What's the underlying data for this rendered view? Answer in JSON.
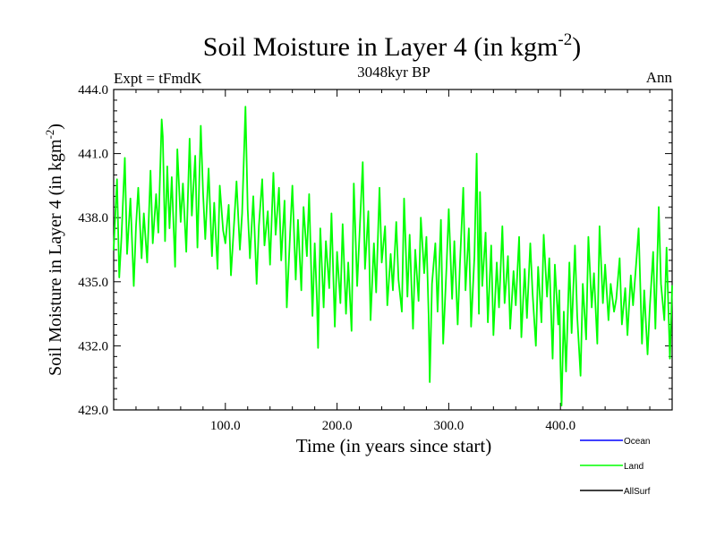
{
  "chart_data": {
    "type": "line",
    "title": "Soil Moisture in Layer 4 (in kgm",
    "title_exponent": "-2",
    "title_suffix": ")",
    "subtitle": "3048kyr BP",
    "left_label": "Expt = tFmdK",
    "right_label": "Ann",
    "xlabel": "Time (in years since start)",
    "ylabel": "Soil Moisture in Layer 4 (in kgm",
    "ylabel_exponent": "-2",
    "ylabel_suffix": ")",
    "xlim": [
      0,
      500
    ],
    "ylim": [
      429.0,
      444.0
    ],
    "x_ticks": [
      100,
      200,
      300,
      400
    ],
    "x_tick_labels": [
      "100.0",
      "200.0",
      "300.0",
      "400.0"
    ],
    "y_ticks": [
      429,
      432,
      435,
      438,
      441,
      444
    ],
    "y_tick_labels": [
      "429.0",
      "432.0",
      "435.0",
      "438.0",
      "441.0",
      "444.0"
    ],
    "series": [
      {
        "name": "Land",
        "color": "#00ff00",
        "x": [
          0,
          3,
          5,
          7,
          10,
          12,
          15,
          18,
          20,
          22,
          25,
          27,
          30,
          33,
          35,
          38,
          40,
          43,
          44,
          46,
          48,
          50,
          52,
          55,
          57,
          60,
          62,
          65,
          68,
          70,
          73,
          75,
          78,
          80,
          82,
          85,
          88,
          90,
          93,
          95,
          98,
          100,
          103,
          105,
          108,
          110,
          113,
          115,
          117,
          118,
          120,
          122,
          125,
          128,
          130,
          133,
          135,
          138,
          140,
          143,
          145,
          148,
          150,
          153,
          155,
          158,
          160,
          163,
          165,
          168,
          170,
          173,
          175,
          178,
          180,
          182,
          183,
          185,
          188,
          190,
          193,
          195,
          198,
          200,
          203,
          205,
          208,
          210,
          213,
          215,
          218,
          220,
          223,
          225,
          228,
          230,
          233,
          235,
          238,
          240,
          243,
          245,
          248,
          250,
          253,
          255,
          258,
          260,
          263,
          265,
          268,
          270,
          273,
          275,
          278,
          280,
          282,
          283,
          285,
          288,
          290,
          293,
          295,
          298,
          300,
          303,
          305,
          308,
          310,
          313,
          315,
          318,
          320,
          323,
          325,
          327,
          328,
          330,
          333,
          335,
          338,
          340,
          343,
          345,
          348,
          350,
          353,
          355,
          358,
          360,
          363,
          365,
          368,
          370,
          373,
          375,
          378,
          380,
          383,
          385,
          388,
          390,
          393,
          395,
          398,
          399,
          400,
          401,
          403,
          405,
          408,
          410,
          413,
          415,
          418,
          420,
          423,
          425,
          428,
          430,
          433,
          435,
          438,
          440,
          443,
          445,
          448,
          450,
          453,
          455,
          458,
          460,
          463,
          465,
          468,
          470,
          473,
          475,
          478,
          480,
          483,
          485,
          488,
          490,
          493,
          495,
          498,
          500
        ],
        "values": [
          436.5,
          439.8,
          435.2,
          437.1,
          440.8,
          436.3,
          438.9,
          434.8,
          437.6,
          439.4,
          436.1,
          438.2,
          435.9,
          440.2,
          436.8,
          439.1,
          437.3,
          442.6,
          441.8,
          436.9,
          440.4,
          437.5,
          439.9,
          435.7,
          441.2,
          437.8,
          439.6,
          436.4,
          441.7,
          438.1,
          440.9,
          436.6,
          442.3,
          439.2,
          437.0,
          440.3,
          436.2,
          438.7,
          435.6,
          439.5,
          437.4,
          436.8,
          438.6,
          435.3,
          437.9,
          439.7,
          436.5,
          438.2,
          441.5,
          443.2,
          438.4,
          436.1,
          439.0,
          434.9,
          437.6,
          439.8,
          436.7,
          438.3,
          435.8,
          440.1,
          437.2,
          439.4,
          436.0,
          438.8,
          433.8,
          437.3,
          439.5,
          435.1,
          437.9,
          434.6,
          438.5,
          436.2,
          439.1,
          433.4,
          436.8,
          434.1,
          431.9,
          437.5,
          433.8,
          436.9,
          434.7,
          438.2,
          432.9,
          436.4,
          434.0,
          437.7,
          433.5,
          435.9,
          432.7,
          439.6,
          434.8,
          437.1,
          440.6,
          435.6,
          438.3,
          433.2,
          436.8,
          434.5,
          439.4,
          435.9,
          437.6,
          433.9,
          436.3,
          434.6,
          437.8,
          435.1,
          433.6,
          438.9,
          434.3,
          437.2,
          432.8,
          436.5,
          434.1,
          438.0,
          435.4,
          437.1,
          433.4,
          430.3,
          434.9,
          436.8,
          433.6,
          437.9,
          432.1,
          435.7,
          438.4,
          434.2,
          436.9,
          433.0,
          435.8,
          439.4,
          434.6,
          437.5,
          432.9,
          436.2,
          441.0,
          433.5,
          439.2,
          434.8,
          437.3,
          433.1,
          436.7,
          432.5,
          435.9,
          433.8,
          437.6,
          434.0,
          436.2,
          432.8,
          435.5,
          433.9,
          437.1,
          432.4,
          435.6,
          433.3,
          436.8,
          434.5,
          432.0,
          435.7,
          433.1,
          437.2,
          434.3,
          436.1,
          431.4,
          435.8,
          433.0,
          434.6,
          431.1,
          429.2,
          433.6,
          430.8,
          435.9,
          432.6,
          436.7,
          433.4,
          430.6,
          434.9,
          432.3,
          437.1,
          433.8,
          435.4,
          432.1,
          437.6,
          434.0,
          435.8,
          433.2,
          434.9,
          433.6,
          434.2,
          436.1,
          433.0,
          434.7,
          432.5,
          435.3,
          433.9,
          436.0,
          437.5,
          432.1,
          434.6,
          431.6,
          433.8,
          436.4,
          432.8,
          438.5,
          434.9,
          433.2,
          436.6,
          431.4,
          434.8
        ]
      }
    ],
    "legend": {
      "position": "bottom-right",
      "items": [
        {
          "name": "Ocean",
          "color": "#0000ff"
        },
        {
          "name": "Land",
          "color": "#00ff00"
        },
        {
          "name": "AllSurf",
          "color": "#000000"
        }
      ]
    }
  }
}
